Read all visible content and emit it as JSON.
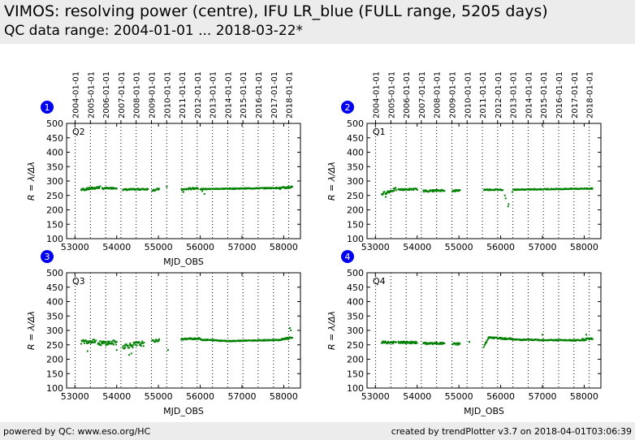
{
  "header": {
    "title": "VIMOS: resolving power (centre), IFU LR_blue (FULL range, 5205 days)",
    "subtitle": "QC data range: 2004-01-01 ... 2018-03-22*"
  },
  "footer": {
    "left": "powered by QC: www.eso.org/HC",
    "right": "created by trendPlotter v3.7 on 2018-04-01T03:06:39"
  },
  "colors": {
    "points": "#008000",
    "badge": "#0000ee",
    "header_bg": "#ececec"
  },
  "chart_data": [
    {
      "type": "scatter",
      "badge": "1",
      "label": "Q2",
      "xlabel": "MJD_OBS",
      "ylabel": "R = λ/Δλ",
      "xlim": [
        52800,
        58400
      ],
      "ylim": [
        100,
        500
      ],
      "xticks": [
        53000,
        54000,
        55000,
        56000,
        57000,
        58000
      ],
      "yticks": [
        100,
        150,
        200,
        250,
        300,
        350,
        400,
        450,
        500
      ],
      "series": [
        {
          "segments": [
            {
              "x": [
                53150,
                53600
              ],
              "y": [
                270,
                278
              ],
              "spread": 8
            },
            {
              "x": [
                53650,
                54000
              ],
              "y": [
                274,
                276
              ],
              "spread": 5
            },
            {
              "x": [
                54150,
                54750
              ],
              "y": [
                270,
                272
              ],
              "spread": 5
            },
            {
              "x": [
                54850,
                55020
              ],
              "y": [
                268,
                272
              ],
              "spread": 6
            },
            {
              "x": [
                55550,
                55950
              ],
              "y": [
                270,
                276
              ],
              "spread": 6
            },
            {
              "x": [
                56000,
                57900
              ],
              "y": [
                272,
                276
              ],
              "spread": 3
            },
            {
              "x": [
                57900,
                58200
              ],
              "y": [
                274,
                280
              ],
              "spread": 8
            }
          ],
          "outliers": [
            [
              56100,
              255
            ],
            [
              55600,
              262
            ],
            [
              55200,
              280
            ],
            [
              56050,
              265
            ]
          ]
        }
      ]
    },
    {
      "type": "scatter",
      "badge": "2",
      "label": "Q1",
      "xlabel": "",
      "ylabel": "R = λ/Δλ",
      "xlim": [
        52800,
        58400
      ],
      "ylim": [
        100,
        500
      ],
      "xticks": [
        53000,
        54000,
        55000,
        56000,
        57000,
        58000
      ],
      "yticks": [
        100,
        150,
        200,
        250,
        300,
        350,
        400,
        450,
        500
      ],
      "series": [
        {
          "segments": [
            {
              "x": [
                53150,
                53500
              ],
              "y": [
                255,
                272
              ],
              "spread": 10
            },
            {
              "x": [
                53550,
                54000
              ],
              "y": [
                270,
                272
              ],
              "spread": 5
            },
            {
              "x": [
                54150,
                54650
              ],
              "y": [
                265,
                268
              ],
              "spread": 6
            },
            {
              "x": [
                54850,
                55020
              ],
              "y": [
                265,
                268
              ],
              "spread": 6
            },
            {
              "x": [
                55600,
                56050
              ],
              "y": [
                270,
                270
              ],
              "spread": 4
            },
            {
              "x": [
                56300,
                58200
              ],
              "y": [
                270,
                274
              ],
              "spread": 3
            }
          ],
          "outliers": [
            [
              56180,
              212
            ],
            [
              56190,
              220
            ],
            [
              56100,
              250
            ],
            [
              56120,
              240
            ],
            [
              53250,
              245
            ],
            [
              56280,
              262
            ]
          ]
        }
      ]
    },
    {
      "type": "scatter",
      "badge": "3",
      "label": "Q3",
      "xlabel": "MJD_OBS",
      "ylabel": "R = λ/Δλ",
      "xlim": [
        52800,
        58400
      ],
      "ylim": [
        100,
        500
      ],
      "xticks": [
        53000,
        54000,
        55000,
        56000,
        57000,
        58000
      ],
      "yticks": [
        100,
        150,
        200,
        250,
        300,
        350,
        400,
        450,
        500
      ],
      "series": [
        {
          "segments": [
            {
              "x": [
                53150,
                53500
              ],
              "y": [
                260,
                265
              ],
              "spread": 14
            },
            {
              "x": [
                53550,
                54000
              ],
              "y": [
                255,
                258
              ],
              "spread": 16
            },
            {
              "x": [
                54150,
                54650
              ],
              "y": [
                245,
                255
              ],
              "spread": 18
            },
            {
              "x": [
                54850,
                55020
              ],
              "y": [
                262,
                266
              ],
              "spread": 8
            },
            {
              "x": [
                55550,
                56000
              ],
              "y": [
                270,
                272
              ],
              "spread": 5
            },
            {
              "x": [
                56000,
                56600
              ],
              "y": [
                268,
                264
              ],
              "spread": 4
            },
            {
              "x": [
                56600,
                57950
              ],
              "y": [
                263,
                267
              ],
              "spread": 3
            },
            {
              "x": [
                57950,
                58200
              ],
              "y": [
                268,
                275
              ],
              "spread": 6
            }
          ],
          "outliers": [
            [
              58150,
              308
            ],
            [
              58170,
              300
            ],
            [
              54300,
              215
            ],
            [
              54350,
              220
            ],
            [
              55230,
              232
            ],
            [
              53300,
              228
            ],
            [
              54000,
              232
            ]
          ]
        }
      ]
    },
    {
      "type": "scatter",
      "badge": "4",
      "label": "Q4",
      "xlabel": "MJD_OBS",
      "ylabel": "R = λ/Δλ",
      "xlim": [
        52800,
        58400
      ],
      "ylim": [
        100,
        500
      ],
      "xticks": [
        53000,
        54000,
        55000,
        56000,
        57000,
        58000
      ],
      "yticks": [
        100,
        150,
        200,
        250,
        300,
        350,
        400,
        450,
        500
      ],
      "series": [
        {
          "segments": [
            {
              "x": [
                53150,
                53500
              ],
              "y": [
                258,
                258
              ],
              "spread": 8
            },
            {
              "x": [
                53550,
                54000
              ],
              "y": [
                258,
                258
              ],
              "spread": 7
            },
            {
              "x": [
                54150,
                54650
              ],
              "y": [
                255,
                255
              ],
              "spread": 6
            },
            {
              "x": [
                54850,
                55020
              ],
              "y": [
                252,
                254
              ],
              "spread": 8
            },
            {
              "x": [
                55600,
                55700
              ],
              "y": [
                245,
                270
              ],
              "spread": 6
            },
            {
              "x": [
                55700,
                56300
              ],
              "y": [
                275,
                270
              ],
              "spread": 5
            },
            {
              "x": [
                56300,
                57950
              ],
              "y": [
                268,
                265
              ],
              "spread": 4
            },
            {
              "x": [
                57950,
                58200
              ],
              "y": [
                268,
                272
              ],
              "spread": 8
            }
          ],
          "outliers": [
            [
              58050,
              285
            ],
            [
              55250,
              260
            ],
            [
              57000,
              285
            ]
          ]
        }
      ]
    }
  ],
  "date_axis": {
    "labels": [
      "2004-01-01",
      "2005-01-01",
      "2006-01-01",
      "2007-01-01",
      "2008-01-01",
      "2009-01-01",
      "2010-01-01",
      "2011-01-01",
      "2012-01-01",
      "2013-01-01",
      "2014-01-01",
      "2015-01-01",
      "2016-01-01",
      "2017-01-01",
      "2018-01-01"
    ],
    "mjd": [
      53005,
      53371,
      53736,
      54101,
      54466,
      54832,
      55197,
      55562,
      55927,
      56293,
      56658,
      57023,
      57388,
      57754,
      58119
    ]
  }
}
